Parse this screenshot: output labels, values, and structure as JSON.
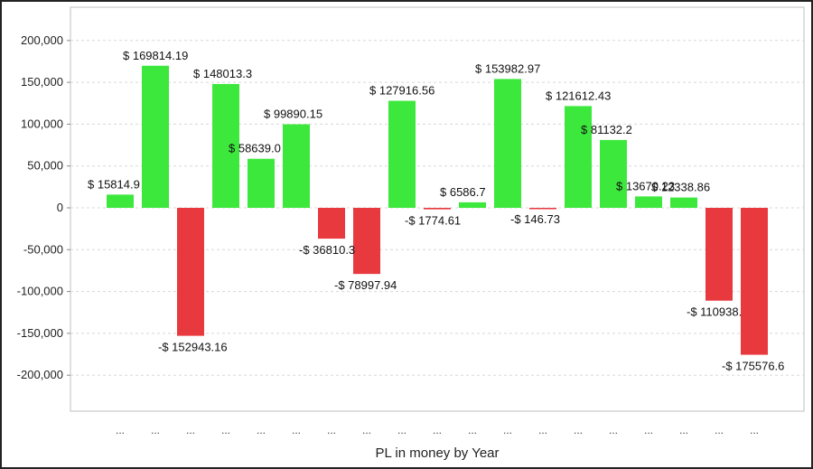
{
  "chart_data": {
    "type": "bar",
    "title": "",
    "xlabel": "PL in money by Year",
    "ylabel": "",
    "ylim": [
      -250000,
      240000
    ],
    "yticks": [
      200000,
      150000,
      100000,
      50000,
      0,
      -50000,
      -100000,
      -150000,
      -200000
    ],
    "ytick_labels": [
      "200,000",
      "150,000",
      "100,000",
      "50,000",
      "0",
      "-50,000",
      "-100,000",
      "-150,000",
      "-200,000"
    ],
    "grid": true,
    "categories": [
      "...",
      "...",
      "...",
      "...",
      "...",
      "...",
      "...",
      "...",
      "...",
      "...",
      "...",
      "...",
      "...",
      "...",
      "...",
      "...",
      "...",
      "...",
      "..."
    ],
    "values": [
      15814.9,
      169814.19,
      -152943.16,
      148013.3,
      58639.0,
      99890.15,
      -36810.3,
      -78997.94,
      127916.56,
      -1774.61,
      6586.7,
      153982.97,
      -146.73,
      121612.43,
      81132.2,
      13670.23,
      12338.86,
      -110938.0,
      -175576.6
    ],
    "data_labels": [
      "$ 15814.9",
      "$ 169814.19",
      "-$ 152943.16",
      "$ 148013.3",
      "$ 58639.0",
      "$ 99890.15",
      "-$ 36810.3",
      "-$ 78997.94",
      "$ 127916.56",
      "-$ 1774.61",
      "$ 6586.7",
      "$ 153982.97",
      "-$ 146.73",
      "$ 121612.43",
      "$ 81132.2",
      "$ 13670.23",
      "$ 12338.86",
      "-$ 110938.",
      "-$ 175576.6"
    ],
    "colors": {
      "positive": "#3de83d",
      "negative": "#e8393f"
    }
  }
}
